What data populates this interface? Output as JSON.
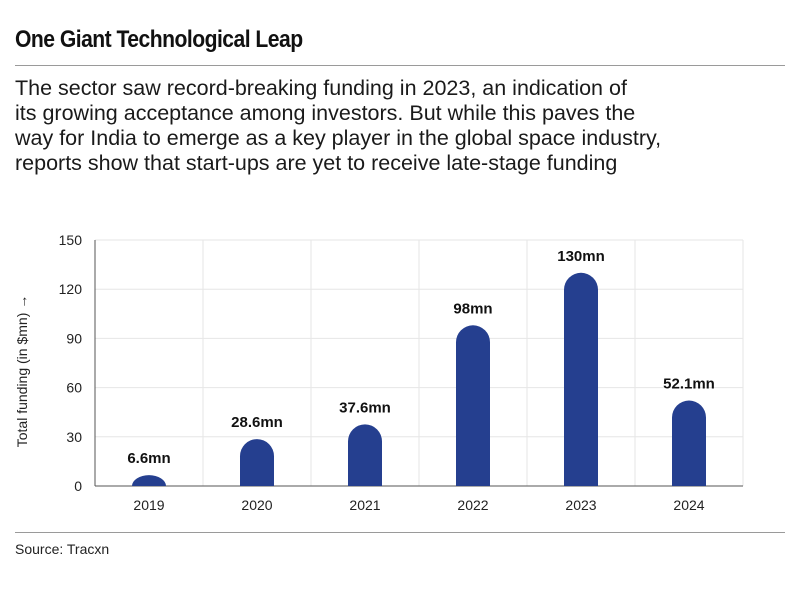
{
  "header": {
    "title": "One Giant Technological Leap",
    "subtitle_lines": [
      "The sector saw record-breaking funding in 2023, an indication of",
      "its growing acceptance among investors. But while this paves the",
      "way for India to emerge as a key player in the global space industry,",
      "reports show that start-ups are yet to receive late-stage funding"
    ]
  },
  "footer": {
    "source": "Source: Tracxn"
  },
  "colors": {
    "bar": "#253f8f",
    "grid": "#e6e6e6",
    "axis": "#555555",
    "text": "#222222"
  },
  "chart_data": {
    "type": "bar",
    "categories": [
      "2019",
      "2020",
      "2021",
      "2022",
      "2023",
      "2024"
    ],
    "values": [
      6.6,
      28.6,
      37.6,
      98,
      130,
      52.1
    ],
    "data_labels": [
      "6.6mn",
      "28.6mn",
      "37.6mn",
      "98mn",
      "130mn",
      "52.1mn"
    ],
    "ylabel": "Total funding (in $mn) →",
    "ylim": [
      0,
      150
    ],
    "yticks": [
      0,
      30,
      60,
      90,
      120,
      150
    ],
    "grid": true,
    "bar_style": "rounded top"
  }
}
